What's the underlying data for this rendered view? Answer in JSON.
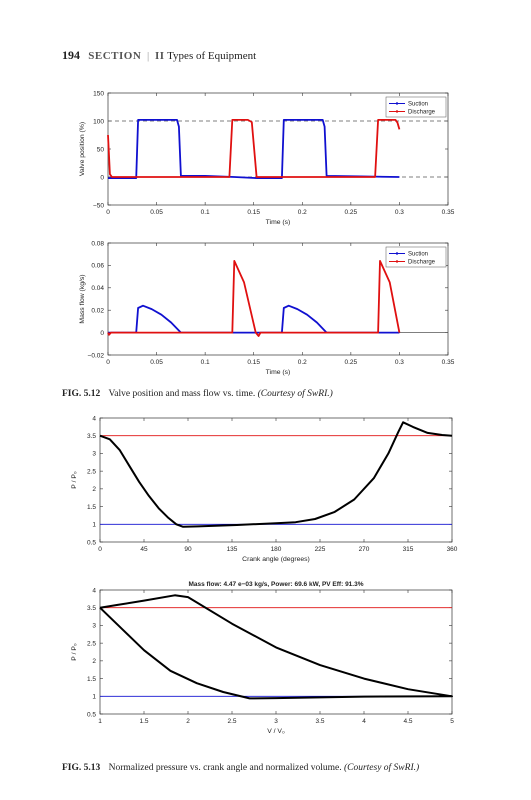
{
  "header": {
    "page": "194",
    "section_label": "SECTION",
    "section_num": "II",
    "section_title": "Types of Equipment"
  },
  "captions": {
    "fig512_label": "FIG. 5.12",
    "fig512_text": "Valve position and mass flow vs. time.",
    "fig512_credit": "(Courtesy of SwRI.)",
    "fig513_label": "FIG. 5.13",
    "fig513_text": "Normalized pressure vs. crank angle and normalized volume.",
    "fig513_credit": "(Courtesy of SwRI.)"
  },
  "colors": {
    "suction": "#1010d0",
    "discharge": "#e01010",
    "curve": "#000000"
  },
  "chart_data": [
    {
      "id": "valve",
      "type": "line",
      "xlabel": "Time (s)",
      "ylabel": "Valve position (%)",
      "xlim": [
        0,
        0.35
      ],
      "ylim": [
        -50,
        150
      ],
      "xticks": [
        "0",
        "0.05",
        "0.1",
        "0.15",
        "0.2",
        "0.25",
        "0.3",
        "0.35"
      ],
      "xtick_values": [
        0,
        0.05,
        0.1,
        0.15,
        0.2,
        0.25,
        0.3,
        0.35
      ],
      "yticks": [
        "−50",
        "0",
        "50",
        "100",
        "150"
      ],
      "ytick_values": [
        -50,
        0,
        50,
        100,
        150
      ],
      "legend": [
        "Suction",
        "Discharge"
      ],
      "legend_position": "top-right",
      "ref_lines": [
        0,
        100
      ],
      "series": [
        {
          "name": "Suction",
          "color": "suction",
          "points": [
            [
              0,
              -2
            ],
            [
              0.029,
              -2
            ],
            [
              0.031,
              102
            ],
            [
              0.071,
              102
            ],
            [
              0.073,
              90
            ],
            [
              0.075,
              2
            ],
            [
              0.1,
              2
            ],
            [
              0.13,
              0
            ],
            [
              0.154,
              -2
            ],
            [
              0.179,
              -2
            ],
            [
              0.181,
              102
            ],
            [
              0.221,
              102
            ],
            [
              0.223,
              90
            ],
            [
              0.225,
              2
            ],
            [
              0.26,
              1
            ],
            [
              0.3,
              0
            ]
          ]
        },
        {
          "name": "Discharge",
          "color": "discharge",
          "points": [
            [
              0,
              75
            ],
            [
              0.002,
              5
            ],
            [
              0.004,
              0
            ],
            [
              0.125,
              0
            ],
            [
              0.128,
              102
            ],
            [
              0.144,
              102
            ],
            [
              0.148,
              98
            ],
            [
              0.153,
              0
            ],
            [
              0.155,
              0
            ],
            [
              0.275,
              0
            ],
            [
              0.278,
              102
            ],
            [
              0.296,
              102
            ],
            [
              0.298,
              97
            ],
            [
              0.3,
              85
            ]
          ]
        }
      ]
    },
    {
      "id": "mass",
      "type": "line",
      "xlabel": "Time (s)",
      "ylabel": "Mass flow (kg/s)",
      "xlim": [
        0,
        0.35
      ],
      "ylim": [
        -0.02,
        0.08
      ],
      "xticks": [
        "0",
        "0.05",
        "0.1",
        "0.15",
        "0.2",
        "0.25",
        "0.3",
        "0.35"
      ],
      "xtick_values": [
        0,
        0.05,
        0.1,
        0.15,
        0.2,
        0.25,
        0.3,
        0.35
      ],
      "yticks": [
        "−0.02",
        "0",
        "0.02",
        "0.04",
        "0.06",
        "0.08"
      ],
      "ytick_values": [
        -0.02,
        0,
        0.02,
        0.04,
        0.06,
        0.08
      ],
      "legend": [
        "Suction",
        "Discharge"
      ],
      "legend_position": "top-right",
      "ref_lines": [
        0
      ],
      "series": [
        {
          "name": "Suction",
          "color": "suction",
          "points": [
            [
              0,
              0
            ],
            [
              0.029,
              0
            ],
            [
              0.031,
              0.022
            ],
            [
              0.036,
              0.024
            ],
            [
              0.045,
              0.021
            ],
            [
              0.055,
              0.016
            ],
            [
              0.065,
              0.009
            ],
            [
              0.075,
              0
            ],
            [
              0.179,
              0
            ],
            [
              0.181,
              0.022
            ],
            [
              0.186,
              0.024
            ],
            [
              0.195,
              0.021
            ],
            [
              0.205,
              0.016
            ],
            [
              0.215,
              0.009
            ],
            [
              0.225,
              0
            ],
            [
              0.3,
              0
            ]
          ]
        },
        {
          "name": "Discharge",
          "color": "discharge",
          "points": [
            [
              0,
              0
            ],
            [
              0.001,
              -0.002
            ],
            [
              0.003,
              0
            ],
            [
              0.128,
              0
            ],
            [
              0.13,
              0.064
            ],
            [
              0.14,
              0.045
            ],
            [
              0.152,
              0
            ],
            [
              0.155,
              -0.003
            ],
            [
              0.157,
              0
            ],
            [
              0.278,
              0
            ],
            [
              0.28,
              0.064
            ],
            [
              0.29,
              0.045
            ],
            [
              0.3,
              0
            ]
          ]
        }
      ]
    },
    {
      "id": "crank",
      "type": "line",
      "xlabel": "Crank angle (degrees)",
      "ylabel": "P / P₀",
      "xlim": [
        0,
        360
      ],
      "ylim": [
        0.5,
        4
      ],
      "xticks": [
        "0",
        "45",
        "90",
        "135",
        "180",
        "225",
        "270",
        "315",
        "360"
      ],
      "xtick_values": [
        0,
        45,
        90,
        135,
        180,
        225,
        270,
        315,
        360
      ],
      "yticks": [
        "0.5",
        "1",
        "1.5",
        "2",
        "2.5",
        "3",
        "3.5",
        "4"
      ],
      "ytick_values": [
        0.5,
        1,
        1.5,
        2,
        2.5,
        3,
        3.5,
        4
      ],
      "ref_lines": [
        {
          "y": 3.5,
          "color": "discharge"
        },
        {
          "y": 1.0,
          "color": "suction"
        }
      ],
      "series": [
        {
          "name": "",
          "color": "curve",
          "points": [
            [
              0,
              3.5
            ],
            [
              10,
              3.4
            ],
            [
              20,
              3.1
            ],
            [
              30,
              2.65
            ],
            [
              40,
              2.2
            ],
            [
              50,
              1.8
            ],
            [
              60,
              1.45
            ],
            [
              70,
              1.18
            ],
            [
              78,
              1.0
            ],
            [
              85,
              0.93
            ],
            [
              100,
              0.94
            ],
            [
              140,
              0.98
            ],
            [
              180,
              1.03
            ],
            [
              200,
              1.06
            ],
            [
              220,
              1.15
            ],
            [
              240,
              1.35
            ],
            [
              260,
              1.7
            ],
            [
              280,
              2.3
            ],
            [
              295,
              3.0
            ],
            [
              305,
              3.6
            ],
            [
              310,
              3.88
            ],
            [
              320,
              3.75
            ],
            [
              335,
              3.58
            ],
            [
              350,
              3.52
            ],
            [
              360,
              3.5
            ]
          ]
        }
      ]
    },
    {
      "id": "pv",
      "type": "line",
      "title": "Mass flow: 4.47 e−03 kg/s, Power: 69.6 kW, PV Eff: 91.3%",
      "xlabel": "V / V₀",
      "ylabel": "P / P₀",
      "xlim": [
        1,
        5
      ],
      "ylim": [
        0.5,
        4
      ],
      "xticks": [
        "1",
        "1.5",
        "2",
        "2.5",
        "3",
        "3.5",
        "4",
        "4.5",
        "5"
      ],
      "xtick_values": [
        1,
        1.5,
        2,
        2.5,
        3,
        3.5,
        4,
        4.5,
        5
      ],
      "yticks": [
        "0.5",
        "1",
        "1.5",
        "2",
        "2.5",
        "3",
        "3.5",
        "4"
      ],
      "ytick_values": [
        0.5,
        1,
        1.5,
        2,
        2.5,
        3,
        3.5,
        4
      ],
      "ref_lines": [
        {
          "y": 3.5,
          "color": "discharge"
        },
        {
          "y": 1.0,
          "color": "suction"
        }
      ],
      "series": [
        {
          "name": "",
          "color": "curve",
          "points": [
            [
              1.0,
              3.5
            ],
            [
              1.2,
              3.02
            ],
            [
              1.5,
              2.3
            ],
            [
              1.8,
              1.72
            ],
            [
              2.1,
              1.37
            ],
            [
              2.4,
              1.12
            ],
            [
              2.7,
              0.94
            ],
            [
              3.0,
              0.95
            ],
            [
              4.0,
              0.99
            ],
            [
              5.0,
              1.0
            ],
            [
              4.5,
              1.2
            ],
            [
              4.0,
              1.5
            ],
            [
              3.5,
              1.88
            ],
            [
              3.0,
              2.38
            ],
            [
              2.5,
              3.05
            ],
            [
              2.0,
              3.8
            ],
            [
              1.85,
              3.85
            ],
            [
              1.5,
              3.7
            ],
            [
              1.2,
              3.58
            ],
            [
              1.0,
              3.5
            ]
          ]
        }
      ]
    }
  ]
}
